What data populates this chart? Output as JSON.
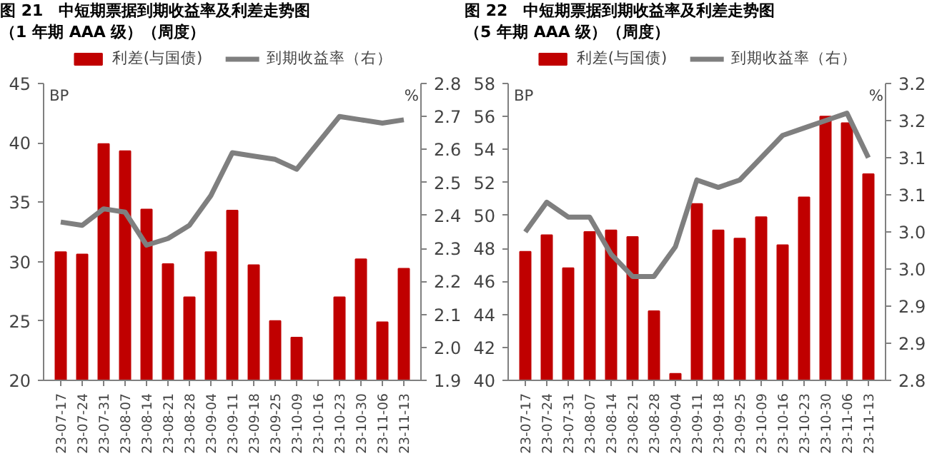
{
  "chart_data": [
    {
      "type": "bar",
      "title": "图 21　中短期票据到期收益率及利差走势图",
      "subtitle": "（1 年期 AAA 级）（周度）",
      "ylabel": "BP",
      "y2label": "%",
      "categories": [
        "23-07-17",
        "23-07-24",
        "23-07-31",
        "23-08-07",
        "23-08-14",
        "23-08-21",
        "23-08-28",
        "23-09-04",
        "23-09-11",
        "23-09-18",
        "23-09-25",
        "23-10-09",
        "23-10-16",
        "23-10-23",
        "23-10-30",
        "23-11-06",
        "23-11-13"
      ],
      "series": [
        {
          "name": "利差(与国债)",
          "color": "#c00000",
          "values": [
            30.8,
            30.6,
            39.9,
            39.3,
            34.4,
            29.8,
            27.0,
            30.8,
            34.3,
            29.7,
            25.0,
            23.6,
            null,
            27.0,
            30.2,
            24.9,
            29.4
          ]
        },
        {
          "name": "到期收益率（右）",
          "type": "line",
          "axis": "y2",
          "color": "#7f7f7f",
          "values": [
            2.38,
            2.37,
            2.42,
            2.41,
            2.31,
            2.33,
            2.37,
            2.46,
            2.59,
            2.58,
            2.57,
            2.54,
            2.62,
            2.7,
            2.69,
            2.68,
            2.69
          ]
        }
      ],
      "ylim": [
        20,
        45
      ],
      "yticks": [
        20,
        25,
        30,
        35,
        40,
        45
      ],
      "y2lim": [
        1.9,
        2.8
      ],
      "y2ticks": [
        1.9,
        {
          "value": 2,
          "label": "2.0"
        },
        2.1,
        2.2,
        2.3,
        2.4,
        2.5,
        2.6,
        2.7,
        2.8
      ],
      "legend": "top",
      "grid": false
    },
    {
      "type": "bar",
      "title": "图 22　中短期票据到期收益率及利差走势图",
      "subtitle": "（5 年期 AAA 级）（周度）",
      "ylabel": "BP",
      "y2label": "%",
      "categories": [
        "23-07-17",
        "23-07-24",
        "23-07-31",
        "23-08-07",
        "23-08-14",
        "23-08-21",
        "23-08-28",
        "23-09-04",
        "23-09-11",
        "23-09-18",
        "23-09-25",
        "23-10-09",
        "23-10-16",
        "23-10-23",
        "23-10-30",
        "23-11-06",
        "23-11-13"
      ],
      "series": [
        {
          "name": "利差(与国债)",
          "color": "#c00000",
          "values": [
            47.8,
            48.8,
            46.8,
            49.0,
            49.1,
            48.7,
            44.2,
            40.4,
            50.7,
            49.1,
            48.6,
            49.9,
            48.2,
            51.1,
            56.0,
            55.6,
            52.5
          ]
        },
        {
          "name": "到期收益率（右）",
          "type": "line",
          "axis": "y2",
          "color": "#7f7f7f",
          "values": [
            3.0,
            3.04,
            3.02,
            3.02,
            2.97,
            2.94,
            2.94,
            2.98,
            3.07,
            3.06,
            3.07,
            3.1,
            3.13,
            3.14,
            3.15,
            3.16,
            3.1
          ]
        }
      ],
      "ylim": [
        40,
        58
      ],
      "yticks": [
        40,
        42,
        44,
        46,
        48,
        50,
        52,
        54,
        56,
        58
      ],
      "y2lim": [
        2.8,
        3.2
      ],
      "y2ticks": [
        {
          "value": 2.8,
          "label": "2.8"
        },
        {
          "value": 2.85,
          "label": "2.9"
        },
        {
          "value": 2.9,
          "label": "2.9"
        },
        {
          "value": 2.95,
          "label": "3.0"
        },
        {
          "value": 3.0,
          "label": "3.0"
        },
        {
          "value": 3.05,
          "label": "3.1"
        },
        {
          "value": 3.1,
          "label": "3.1"
        },
        {
          "value": 3.15,
          "label": "3.2"
        },
        {
          "value": 3.2,
          "label": "3.2"
        }
      ],
      "legend": "top",
      "grid": false
    }
  ]
}
